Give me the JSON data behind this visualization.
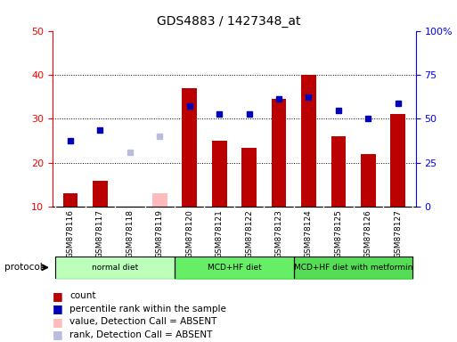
{
  "title": "GDS4883 / 1427348_at",
  "samples": [
    "GSM878116",
    "GSM878117",
    "GSM878118",
    "GSM878119",
    "GSM878120",
    "GSM878121",
    "GSM878122",
    "GSM878123",
    "GSM878124",
    "GSM878125",
    "GSM878126",
    "GSM878127"
  ],
  "count_values": [
    13,
    16,
    10,
    null,
    37,
    25,
    23.5,
    34.5,
    40,
    26,
    22,
    31
  ],
  "count_absent": [
    null,
    null,
    null,
    13,
    null,
    null,
    null,
    null,
    null,
    null,
    null,
    null
  ],
  "percentile_values": [
    25,
    27.5,
    null,
    null,
    33,
    31,
    31,
    34.5,
    35,
    32,
    30,
    33.5
  ],
  "percentile_absent": [
    null,
    null,
    22.5,
    26,
    null,
    null,
    null,
    null,
    null,
    null,
    null,
    null
  ],
  "protocols": [
    {
      "label": "normal diet",
      "start": 0,
      "end": 4,
      "color": "#bbffbb"
    },
    {
      "label": "MCD+HF diet",
      "start": 4,
      "end": 8,
      "color": "#66ee66"
    },
    {
      "label": "MCD+HF diet with metformin",
      "start": 8,
      "end": 12,
      "color": "#55dd55"
    }
  ],
  "ylim_left": [
    10,
    50
  ],
  "ylim_right": [
    0,
    100
  ],
  "bar_width": 0.5,
  "count_color": "#bb0000",
  "count_absent_color": "#ffbbbb",
  "percentile_color": "#0000bb",
  "percentile_absent_color": "#bbbbdd",
  "bg_color": "#d8d8d8",
  "fig_bg": "#ffffff"
}
